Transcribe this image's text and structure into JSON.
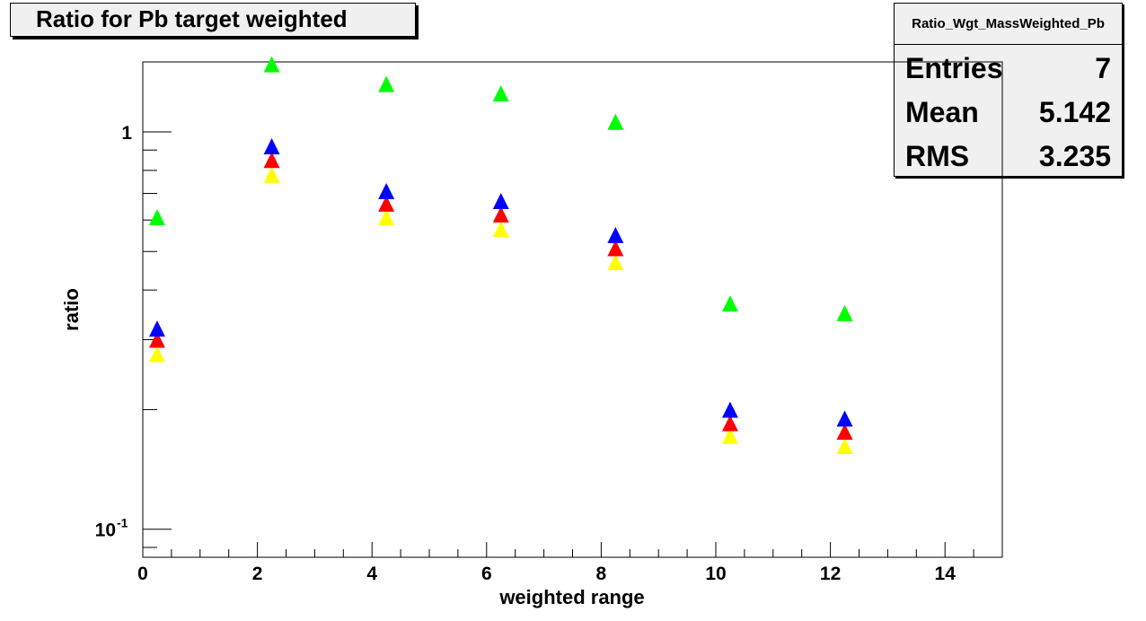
{
  "title": "Ratio for Pb target weighted",
  "stats": {
    "name": "Ratio_Wgt_MassWeighted_Pb",
    "rows": [
      {
        "key": "Entries",
        "value": "7"
      },
      {
        "key": "Mean",
        "value": "5.142"
      },
      {
        "key": "RMS",
        "value": "3.235"
      }
    ]
  },
  "chart_data": {
    "type": "scatter",
    "title": "Ratio for Pb target weighted",
    "xlabel": "weighted range",
    "ylabel": "ratio",
    "xlim": [
      0,
      15
    ],
    "ylim": [
      0.085,
      1.5
    ],
    "yscale": "log",
    "x_ticks": [
      "0",
      "2",
      "4",
      "6",
      "8",
      "10",
      "12",
      "14"
    ],
    "y_ticks": [
      {
        "value": 1,
        "label": "1"
      },
      {
        "value": 0.1,
        "label": "10",
        "exponent": "-1"
      }
    ],
    "x": [
      0.25,
      2.25,
      4.25,
      6.25,
      8.25,
      10.25,
      12.25
    ],
    "series": [
      {
        "color": "#00ff00",
        "marker": "triangle",
        "values": [
          0.61,
          1.48,
          1.32,
          1.25,
          1.06,
          0.37,
          0.35
        ]
      },
      {
        "color": "#0000ff",
        "marker": "triangle",
        "values": [
          0.32,
          0.92,
          0.71,
          0.67,
          0.55,
          0.2,
          0.19
        ]
      },
      {
        "color": "#ff0000",
        "marker": "triangle",
        "values": [
          0.3,
          0.85,
          0.66,
          0.62,
          0.51,
          0.185,
          0.176
        ]
      },
      {
        "color": "#ffff00",
        "marker": "triangle",
        "values": [
          0.276,
          0.78,
          0.61,
          0.57,
          0.47,
          0.172,
          0.162
        ]
      }
    ]
  }
}
